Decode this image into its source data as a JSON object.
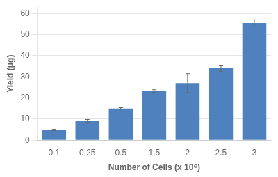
{
  "chart_data": {
    "type": "bar",
    "categories": [
      "0.1",
      "0.25",
      "0.5",
      "1.5",
      "2",
      "2.5",
      "3"
    ],
    "values": [
      4.8,
      9.2,
      15.0,
      23.3,
      27.0,
      34.0,
      55.5
    ],
    "errors": [
      0.35,
      0.6,
      0.4,
      0.6,
      4.5,
      1.5,
      1.5
    ],
    "color": "#4e81bd",
    "xlabel": "Number of Cells (x 10⁶)",
    "ylabel": "Yield (μg)",
    "ylim": [
      0,
      63
    ],
    "yticks": [
      0,
      10,
      20,
      30,
      40,
      50,
      60
    ],
    "grid": true
  }
}
